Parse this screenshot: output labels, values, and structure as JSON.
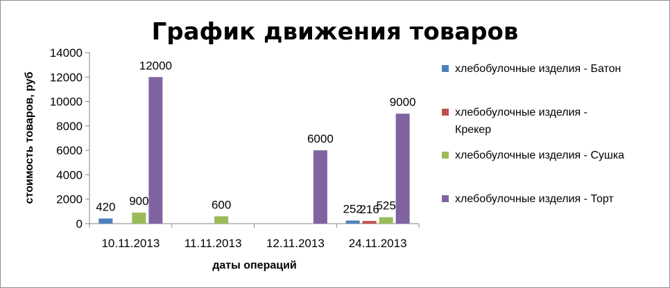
{
  "chart_data": {
    "type": "bar",
    "title": "График движения товаров",
    "xlabel": "даты операций",
    "ylabel": "стоимость товаров, руб",
    "categories": [
      "10.11.2013",
      "11.11.2013",
      "12.11.2013",
      "24.11.2013"
    ],
    "ylim": [
      0,
      14000
    ],
    "yticks": [
      0,
      2000,
      4000,
      6000,
      8000,
      10000,
      12000,
      14000
    ],
    "grid": false,
    "legend_position": "right",
    "series": [
      {
        "name": "хлебобулочные изделия - Батон",
        "color": "#4F81BD",
        "values": [
          420,
          null,
          null,
          252
        ],
        "labels": [
          "420",
          "",
          "",
          "252"
        ]
      },
      {
        "name": "хлебобулочные изделия - Крекер",
        "color": "#C0504D",
        "values": [
          null,
          null,
          null,
          216
        ],
        "labels": [
          "",
          "",
          "",
          "216"
        ]
      },
      {
        "name": "хлебобулочные изделия - Сушка",
        "color": "#9BBB59",
        "values": [
          900,
          600,
          null,
          525
        ],
        "labels": [
          "900",
          "600",
          "",
          "525"
        ]
      },
      {
        "name": "хлебобулочные изделия - Торт",
        "color": "#8064A2",
        "values": [
          12000,
          null,
          6000,
          9000
        ],
        "labels": [
          "12000",
          "",
          "6000",
          "9000"
        ]
      }
    ],
    "legend_lines": [
      [
        "хлебобулочные изделия - Батон"
      ],
      [
        "хлебобулочные изделия -",
        "Крекер"
      ],
      [
        "хлебобулочные изделия - Сушка"
      ],
      [
        "хлебобулочные изделия - Торт"
      ]
    ]
  }
}
